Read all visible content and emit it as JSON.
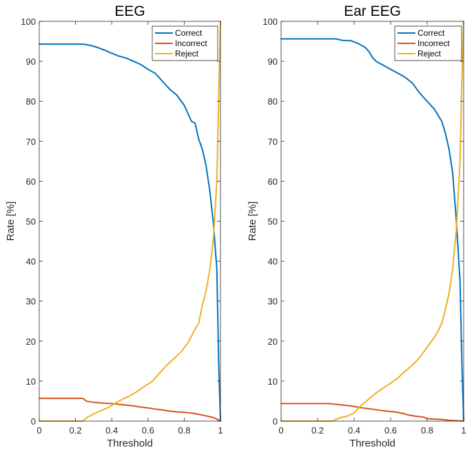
{
  "chart_data": [
    {
      "type": "line",
      "title": "EEG",
      "xlabel": "Threshold",
      "ylabel": "Rate [%]",
      "xlim": [
        0,
        1
      ],
      "ylim": [
        0,
        100
      ],
      "xticks": [
        0,
        0.2,
        0.4,
        0.6,
        0.8,
        1
      ],
      "xtick_labels": [
        "0",
        "0.2",
        "0.4",
        "0.6",
        "0.8",
        "1"
      ],
      "yticks": [
        0,
        10,
        20,
        30,
        40,
        50,
        60,
        70,
        80,
        90,
        100
      ],
      "ytick_labels": [
        "0",
        "10",
        "20",
        "30",
        "40",
        "50",
        "60",
        "70",
        "80",
        "90",
        "100"
      ],
      "legend_position": "top-right",
      "series": [
        {
          "name": "Correct",
          "color": "#0072BD",
          "x": [
            0,
            0.2,
            0.24,
            0.28,
            0.32,
            0.36,
            0.4,
            0.44,
            0.48,
            0.52,
            0.56,
            0.6,
            0.64,
            0.68,
            0.72,
            0.76,
            0.8,
            0.84,
            0.86,
            0.88,
            0.9,
            0.92,
            0.94,
            0.96,
            0.98,
            0.99,
            1.0
          ],
          "y": [
            94.3,
            94.3,
            94.3,
            94.0,
            93.5,
            92.8,
            92.0,
            91.3,
            90.8,
            90.0,
            89.2,
            88.0,
            87.0,
            85.0,
            83.0,
            81.5,
            79.0,
            75.0,
            74.5,
            70.5,
            68.0,
            64.0,
            58.0,
            50.0,
            38.0,
            15.0,
            0.0
          ]
        },
        {
          "name": "Incorrect",
          "color": "#D95319",
          "x": [
            0,
            0.2,
            0.24,
            0.26,
            0.3,
            0.35,
            0.4,
            0.44,
            0.48,
            0.52,
            0.56,
            0.6,
            0.64,
            0.68,
            0.72,
            0.76,
            0.8,
            0.84,
            0.88,
            0.92,
            0.96,
            0.98,
            1.0
          ],
          "y": [
            5.7,
            5.7,
            5.7,
            5.0,
            4.7,
            4.5,
            4.4,
            4.2,
            4.0,
            3.8,
            3.5,
            3.3,
            3.0,
            2.8,
            2.5,
            2.3,
            2.2,
            2.0,
            1.7,
            1.3,
            0.9,
            0.5,
            0.0
          ]
        },
        {
          "name": "Reject",
          "color": "#EDB120",
          "x": [
            0,
            0.2,
            0.24,
            0.26,
            0.3,
            0.34,
            0.38,
            0.42,
            0.46,
            0.5,
            0.54,
            0.58,
            0.62,
            0.66,
            0.7,
            0.74,
            0.78,
            0.82,
            0.86,
            0.88,
            0.9,
            0.92,
            0.94,
            0.96,
            0.98,
            0.99,
            1.0
          ],
          "y": [
            0.0,
            0.0,
            0.0,
            0.8,
            1.8,
            2.6,
            3.4,
            4.5,
            5.5,
            6.3,
            7.4,
            8.7,
            9.8,
            11.8,
            13.8,
            15.5,
            17.2,
            19.5,
            23.0,
            24.5,
            29.0,
            32.5,
            37.5,
            45.0,
            60.0,
            80.0,
            100.0
          ]
        }
      ]
    },
    {
      "type": "line",
      "title": "Ear EEG",
      "xlabel": "Threshold",
      "ylabel": "Rate [%]",
      "xlim": [
        0,
        1
      ],
      "ylim": [
        0,
        100
      ],
      "xticks": [
        0,
        0.2,
        0.4,
        0.6,
        0.8,
        1
      ],
      "xtick_labels": [
        "0",
        "0.2",
        "0.4",
        "0.6",
        "0.8",
        "1"
      ],
      "yticks": [
        0,
        10,
        20,
        30,
        40,
        50,
        60,
        70,
        80,
        90,
        100
      ],
      "ytick_labels": [
        "0",
        "10",
        "20",
        "30",
        "40",
        "50",
        "60",
        "70",
        "80",
        "90",
        "100"
      ],
      "legend_position": "top-right",
      "series": [
        {
          "name": "Correct",
          "color": "#0072BD",
          "x": [
            0,
            0.2,
            0.3,
            0.34,
            0.38,
            0.42,
            0.46,
            0.48,
            0.5,
            0.52,
            0.56,
            0.6,
            0.64,
            0.68,
            0.72,
            0.76,
            0.8,
            0.84,
            0.86,
            0.88,
            0.9,
            0.92,
            0.94,
            0.96,
            0.98,
            0.99,
            1.0
          ],
          "y": [
            95.6,
            95.6,
            95.6,
            95.2,
            95.2,
            94.5,
            93.5,
            92.5,
            91.0,
            90.0,
            89.0,
            88.0,
            87.0,
            86.0,
            84.5,
            82.0,
            80.0,
            78.0,
            76.5,
            75.0,
            72.0,
            68.0,
            62.0,
            50.0,
            35.0,
            15.0,
            0.0
          ]
        },
        {
          "name": "Incorrect",
          "color": "#D95319",
          "x": [
            0,
            0.2,
            0.26,
            0.3,
            0.34,
            0.38,
            0.42,
            0.46,
            0.5,
            0.54,
            0.58,
            0.62,
            0.66,
            0.7,
            0.74,
            0.78,
            0.8,
            0.84,
            0.88,
            0.92,
            0.96,
            1.0
          ],
          "y": [
            4.4,
            4.4,
            4.4,
            4.2,
            4.0,
            3.8,
            3.5,
            3.2,
            3.0,
            2.7,
            2.5,
            2.3,
            2.0,
            1.5,
            1.2,
            1.0,
            0.6,
            0.5,
            0.4,
            0.2,
            0.1,
            0.0
          ]
        },
        {
          "name": "Reject",
          "color": "#EDB120",
          "x": [
            0,
            0.2,
            0.28,
            0.32,
            0.36,
            0.4,
            0.44,
            0.48,
            0.52,
            0.56,
            0.6,
            0.64,
            0.68,
            0.72,
            0.76,
            0.8,
            0.84,
            0.86,
            0.88,
            0.9,
            0.92,
            0.94,
            0.96,
            0.98,
            0.99,
            1.0
          ],
          "y": [
            0.0,
            0.0,
            0.0,
            0.8,
            1.2,
            2.0,
            4.0,
            5.5,
            7.0,
            8.3,
            9.5,
            10.8,
            12.5,
            14.0,
            16.0,
            18.5,
            21.0,
            22.5,
            24.5,
            28.0,
            32.0,
            38.0,
            48.0,
            65.0,
            85.0,
            100.0
          ]
        }
      ]
    }
  ]
}
